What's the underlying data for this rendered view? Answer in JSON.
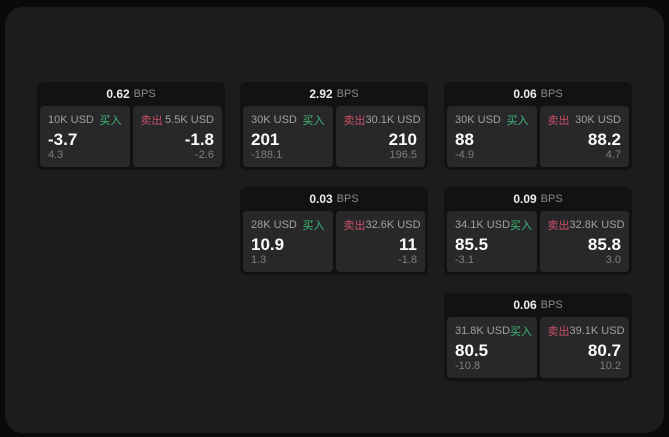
{
  "labels": {
    "bps_unit": "BPS",
    "buy": "买入",
    "sell": "卖出"
  },
  "colors": {
    "background": "#0a0a0a",
    "panel": "#1c1c1c",
    "card": "#121212",
    "tile": "#28282a",
    "buy_green": "#40b875",
    "sell_red": "#c94f66"
  },
  "cards": [
    {
      "bps": "0.62",
      "buy": {
        "amount": "10K USD",
        "price": "-3.7",
        "sub": "4.3"
      },
      "sell": {
        "amount": "5.5K USD",
        "price": "-1.8",
        "sub": "-2.6"
      }
    },
    {
      "bps": "2.92",
      "buy": {
        "amount": "30K USD",
        "price": "201",
        "sub": "-188.1"
      },
      "sell": {
        "amount": "30.1K USD",
        "price": "210",
        "sub": "196.5"
      }
    },
    {
      "bps": "0.06",
      "buy": {
        "amount": "30K USD",
        "price": "88",
        "sub": "-4.9"
      },
      "sell": {
        "amount": "30K USD",
        "price": "88.2",
        "sub": "4.7"
      }
    },
    {
      "bps": "0.03",
      "buy": {
        "amount": "28K USD",
        "price": "10.9",
        "sub": "1.3"
      },
      "sell": {
        "amount": "32.6K USD",
        "price": "11",
        "sub": "-1.8"
      }
    },
    {
      "bps": "0.09",
      "buy": {
        "amount": "34.1K USD",
        "price": "85.5",
        "sub": "-3.1"
      },
      "sell": {
        "amount": "32.8K USD",
        "price": "85.8",
        "sub": "3.0"
      }
    },
    {
      "bps": "0.06",
      "buy": {
        "amount": "31.8K USD",
        "price": "80.5",
        "sub": "-10.8"
      },
      "sell": {
        "amount": "39.1K USD",
        "price": "80.7",
        "sub": "10.2"
      }
    }
  ]
}
